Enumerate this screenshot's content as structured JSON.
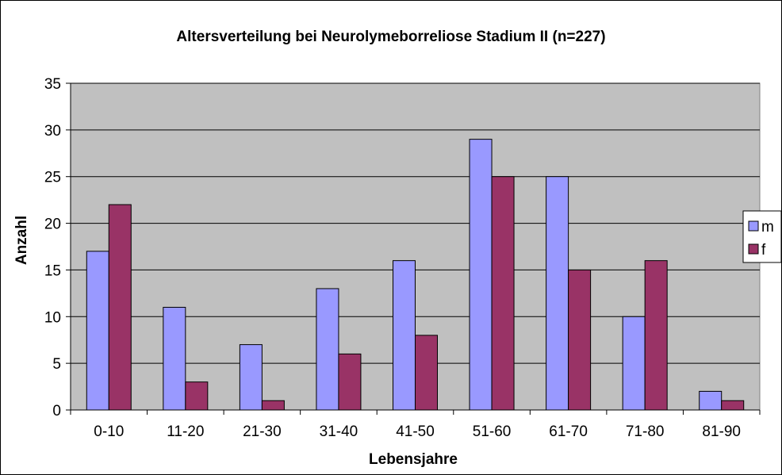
{
  "chart_data": {
    "type": "bar",
    "title": "Altersverteilung bei Neurolymeborreliose  Stadium II (n=227)",
    "xlabel": "Lebensjahre",
    "ylabel": "Anzahl",
    "categories": [
      "0-10",
      "11-20",
      "21-30",
      "31-40",
      "41-50",
      "51-60",
      "61-70",
      "71-80",
      "81-90"
    ],
    "series": [
      {
        "name": "m",
        "color": "#9999ff",
        "values": [
          17,
          11,
          7,
          13,
          16,
          29,
          25,
          10,
          2
        ]
      },
      {
        "name": "f",
        "color": "#993366",
        "values": [
          22,
          3,
          1,
          6,
          8,
          25,
          15,
          16,
          1
        ]
      }
    ],
    "ylim": [
      0,
      35
    ],
    "yticks": [
      0,
      5,
      10,
      15,
      20,
      25,
      30,
      35
    ],
    "grid": true,
    "plot_background": "#c0c0c0",
    "legend_position": "right"
  }
}
